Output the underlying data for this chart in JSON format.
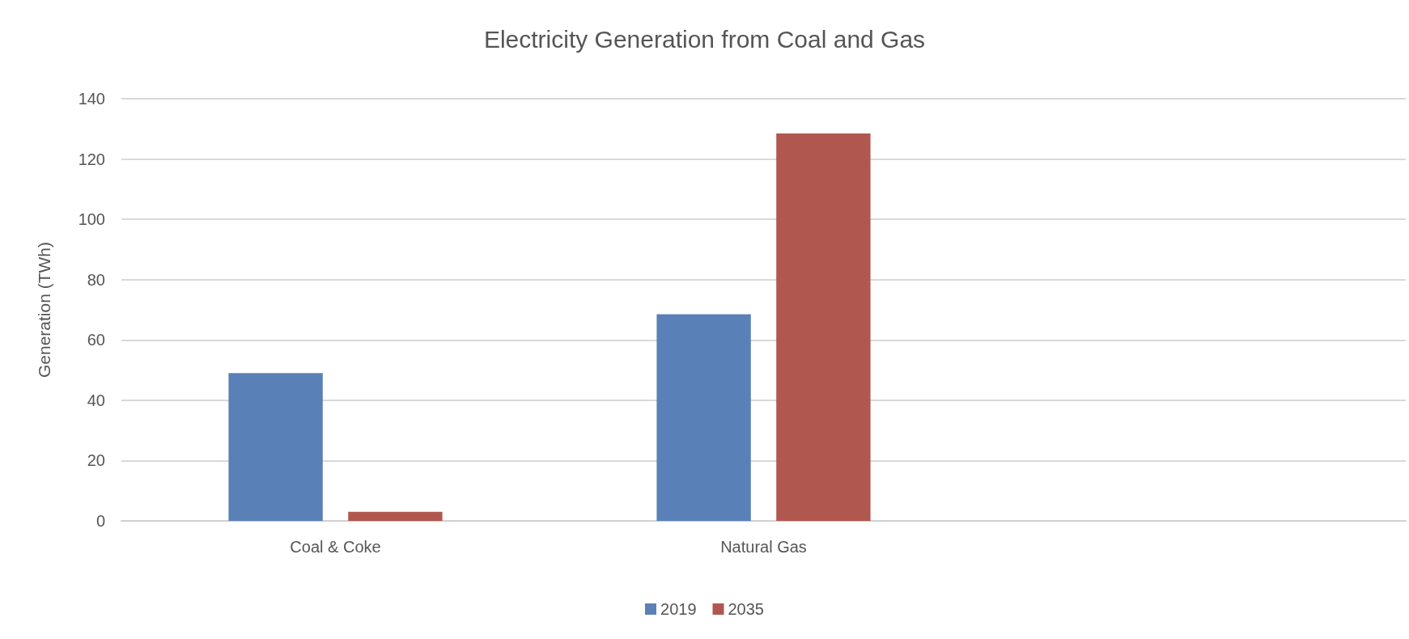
{
  "chart_data": {
    "type": "bar",
    "title": "Electricity Generation from Coal and Gas",
    "ylabel": "Generation (TWh)",
    "categories": [
      "Coal & Coke",
      "Natural Gas",
      null
    ],
    "series": [
      {
        "name": "2019",
        "color": "#5a80b8",
        "values": [
          49,
          68.5,
          null
        ]
      },
      {
        "name": "2035",
        "color": "#b0584f",
        "values": [
          3,
          128.5,
          null
        ]
      }
    ],
    "ylim": [
      0,
      140
    ],
    "yticks": [
      0,
      20,
      40,
      60,
      80,
      100,
      120,
      140
    ],
    "grid": "y",
    "legend": "bottom"
  }
}
